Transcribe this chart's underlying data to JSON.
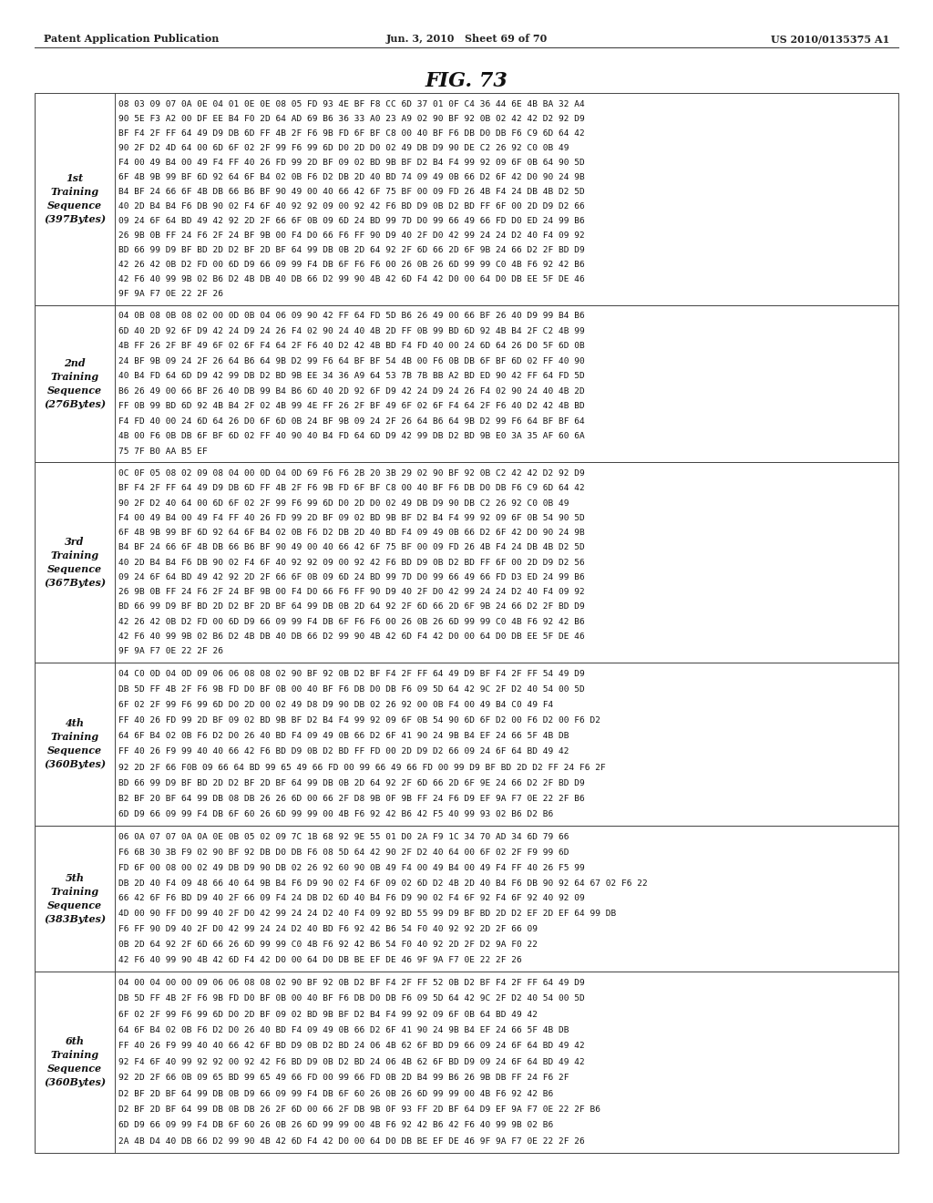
{
  "header_left": "Patent Application Publication",
  "header_center": "Jun. 3, 2010   Sheet 69 of 70",
  "header_right": "US 2010/0135375 A1",
  "figure_title": "FIG. 73",
  "sections": [
    {
      "label": "1st\nTraining\nSequence\n(397Bytes)",
      "rows": [
        "08 03 09 07 0A 0E 04 01 0E 0E 08 05 FD 93 4E BF F8 CC 6D 37 01 0F C4 36 44 6E 4B BA 32 A4",
        "90 5E F3 A2 00 DF EE B4 F0 2D 64 AD 69 B6 36 33 A0 23 A9 02 90 BF 92 0B 02 42 42 D2 92 D9",
        "BF F4 2F FF 64 49 D9 DB 6D FF 4B 2F F6 9B FD 6F BF C8 00 40 BF F6 DB D0 DB F6 C9 6D 64 42",
        "90 2F D2 4D 64 00 6D 6F 02 2F 99 F6 99 6D D0 2D D0 02 49 DB D9 90 DE C2 26 92 C0 0B 49",
        "F4 00 49 B4 00 49 F4 FF 40 26 FD 99 2D BF 09 02 BD 9B BF D2 B4 F4 99 92 09 6F 0B 64 90 5D",
        "6F 4B 9B 99 BF 6D 92 64 6F B4 02 0B F6 D2 DB 2D 40 BD 74 09 49 0B 66 D2 6F 42 D0 90 24 9B",
        "B4 BF 24 66 6F 4B DB 66 B6 BF 90 49 00 40 66 42 6F 75 BF 00 09 FD 26 4B F4 24 DB 4B D2 5D",
        "40 2D B4 B4 F6 DB 90 02 F4 6F 40 92 92 09 00 92 42 F6 BD D9 0B D2 BD FF 6F 00 2D D9 D2 66",
        "09 24 6F 64 BD 49 42 92 2D 2F 66 6F 0B 09 6D 24 BD 99 7D D0 99 66 49 66 FD D0 ED 24 99 B6",
        "26 9B 0B FF 24 F6 2F 24 BF 9B 00 F4 D0 66 F6 FF 90 D9 40 2F D0 42 99 24 24 D2 40 F4 09 92",
        "BD 66 99 D9 BF BD 2D D2 BF 2D BF 64 99 DB 0B 2D 64 92 2F 6D 66 2D 6F 9B 24 66 D2 2F BD D9",
        "42 26 42 0B D2 FD 00 6D D9 66 09 99 F4 DB 6F F6 F6 00 26 0B 26 6D 99 99 C0 4B F6 92 42 B6",
        "42 F6 40 99 9B 02 B6 D2 4B DB 40 DB 66 D2 99 90 4B 42 6D F4 42 D0 00 64 D0 DB EE 5F DE 46",
        "9F 9A F7 0E 22 2F 26"
      ]
    },
    {
      "label": "2nd\nTraining\nSequence\n(276Bytes)",
      "rows": [
        "04 0B 08 0B 08 02 00 0D 0B 04 06 09 90 42 FF 64 FD 5D B6 26 49 00 66 BF 26 40 D9 99 B4 B6",
        "6D 40 2D 92 6F D9 42 24 D9 24 26 F4 02 90 24 40 4B 2D FF 0B 99 BD 6D 92 4B B4 2F C2 4B 99",
        "4B FF 26 2F BF 49 6F 02 6F F4 64 2F F6 40 D2 42 4B BD F4 FD 40 00 24 6D 64 26 D0 5F 6D 0B",
        "24 BF 9B 09 24 2F 26 64 B6 64 9B D2 99 F6 64 BF BF 54 4B 00 F6 0B DB 6F BF 6D 02 FF 40 90",
        "40 B4 FD 64 6D D9 42 99 DB D2 BD 9B EE 34 36 A9 64 53 7B 7B BB A2 BD ED 90 42 FF 64 FD 5D",
        "B6 26 49 00 66 BF 26 40 DB 99 B4 B6 6D 40 2D 92 6F D9 42 24 D9 24 26 F4 02 90 24 40 4B 2D",
        "FF 0B 99 BD 6D 92 4B B4 2F 02 4B 99 4E FF 26 2F BF 49 6F 02 6F F4 64 2F F6 40 D2 42 4B BD",
        "F4 FD 40 00 24 6D 64 26 D0 6F 6D 0B 24 BF 9B 09 24 2F 26 64 B6 64 9B D2 99 F6 64 BF BF 64",
        "4B 00 F6 0B DB 6F BF 6D 02 FF 40 90 40 B4 FD 64 6D D9 42 99 DB D2 BD 9B E0 3A 35 AF 60 6A",
        "75 7F B0 AA B5 EF"
      ]
    },
    {
      "label": "3rd\nTraining\nSequence\n(367Bytes)",
      "rows": [
        "0C 0F 05 08 02 09 08 04 00 0D 04 0D 69 F6 F6 2B 20 3B 29 02 90 BF 92 0B C2 42 42 D2 92 D9",
        "BF F4 2F FF 64 49 D9 DB 6D FF 4B 2F F6 9B FD 6F BF C8 00 40 BF F6 DB D0 DB F6 C9 6D 64 42",
        "90 2F D2 40 64 00 6D 6F 02 2F 99 F6 99 6D D0 2D D0 02 49 DB D9 90 DB C2 26 92 C0 0B 49",
        "F4 00 49 B4 00 49 F4 FF 40 26 FD 99 2D BF 09 02 BD 9B BF D2 B4 F4 99 92 09 6F 0B 54 90 5D",
        "6F 4B 9B 99 BF 6D 92 64 6F B4 02 0B F6 D2 DB 2D 40 BD F4 09 49 0B 66 D2 6F 42 D0 90 24 9B",
        "B4 BF 24 66 6F 4B DB 66 B6 BF 90 49 00 40 66 42 6F 75 BF 00 09 FD 26 4B F4 24 DB 4B D2 5D",
        "40 2D B4 B4 F6 DB 90 02 F4 6F 40 92 92 09 00 92 42 F6 BD D9 0B D2 BD FF 6F 00 2D D9 D2 56",
        "09 24 6F 64 BD 49 42 92 2D 2F 66 6F 0B 09 6D 24 BD 99 7D D0 99 66 49 66 FD D3 ED 24 99 B6",
        "26 9B 0B FF 24 F6 2F 24 BF 9B 00 F4 D0 66 F6 FF 90 D9 40 2F D0 42 99 24 24 D2 40 F4 09 92",
        "BD 66 99 D9 BF BD 2D D2 BF 2D BF 64 99 DB 0B 2D 64 92 2F 6D 66 2D 6F 9B 24 66 D2 2F BD D9",
        "42 26 42 0B D2 FD 00 6D D9 66 09 99 F4 DB 6F F6 F6 00 26 0B 26 6D 99 99 C0 4B F6 92 42 B6",
        "42 F6 40 99 9B 02 B6 D2 4B DB 40 DB 66 D2 99 90 4B 42 6D F4 42 D0 00 64 D0 DB EE 5F DE 46",
        "9F 9A F7 0E 22 2F 26"
      ]
    },
    {
      "label": "4th\nTraining\nSequence\n(360Bytes)",
      "rows": [
        "04 C0 0D 04 0D 09 06 06 08 08 02 90 BF 92 0B D2 BF F4 2F FF 64 49 D9 BF F4 2F FF 54 49 D9",
        "DB 5D FF 4B 2F F6 9B FD D0 BF 0B 00 40 BF F6 DB D0 DB F6 09 5D 64 42 9C 2F D2 40 54 00 5D",
        "6F 02 2F 99 F6 99 6D D0 2D 00 02 49 D8 D9 90 DB 02 26 92 00 0B F4 00 49 B4 C0 49 F4",
        "FF 40 26 FD 99 2D BF 09 02 BD 9B BF D2 B4 F4 99 92 09 6F 0B 54 90 6D 6F D2 00 F6 D2 00 F6 D2",
        "64 6F B4 02 0B F6 D2 D0 26 40 BD F4 09 49 0B 66 D2 6F 41 90 24 9B B4 EF 24 66 5F 4B DB",
        "FF 40 26 F9 99 40 40 66 42 F6 BD D9 0B D2 BD FF FD 00 2D D9 D2 66 09 24 6F 64 BD 49 42",
        "92 2D 2F 66 F0B 09 66 64 BD 99 65 49 66 FD 00 99 66 49 66 FD 00 99 D9 BF BD 2D D2 FF 24 F6 2F",
        "BD 66 99 D9 BF BD 2D D2 BF 2D BF 64 99 DB 0B 2D 64 92 2F 6D 66 2D 6F 9E 24 66 D2 2F BD D9",
        "B2 BF 20 BF 64 99 DB 08 DB 26 26 6D 00 66 2F D8 9B 0F 9B FF 24 F6 D9 EF 9A F7 0E 22 2F B6",
        "6D D9 66 09 99 F4 DB 6F 60 26 6D 99 99 00 4B F6 92 42 B6 42 F5 40 99 93 02 B6 D2 B6"
      ]
    },
    {
      "label": "5th\nTraining\nSequence\n(383Bytes)",
      "rows": [
        "06 0A 07 07 0A 0A 0E 0B 05 02 09 7C 1B 68 92 9E 55 01 D0 2A F9 1C 34 70 AD 34 6D 79 66",
        "F6 6B 30 3B F9 02 90 BF 92 DB D0 DB F6 08 5D 64 42 90 2F D2 40 64 00 6F 02 2F F9 99 6D",
        "FD 6F 00 08 00 02 49 DB D9 90 DB 02 26 92 60 90 0B 49 F4 00 49 B4 00 49 F4 FF 40 26 F5 99",
        "DB 2D 40 F4 09 48 66 40 64 9B B4 F6 D9 90 02 F4 6F 09 02 6D D2 4B 2D 40 B4 F6 DB 90 92 64 67 02 F6 22",
        "66 42 6F F6 BD D9 40 2F 66 09 F4 24 DB D2 6D 40 B4 F6 D9 90 02 F4 6F 92 F4 6F 92 40 92 09",
        "4D 00 90 FF D0 99 40 2F D0 42 99 24 24 D2 40 F4 09 92 BD 55 99 D9 BF BD 2D D2 EF 2D EF 64 99 DB",
        "F6 FF 90 D9 40 2F D0 42 99 24 24 D2 40 BD F6 92 42 B6 54 F0 40 92 92 2D 2F 66 09",
        "0B 2D 64 92 2F 6D 66 26 6D 99 99 C0 4B F6 92 42 B6 54 F0 40 92 2D 2F D2 9A F0 22",
        "42 F6 40 99 90 4B 42 6D F4 42 D0 00 64 D0 DB BE EF DE 46 9F 9A F7 0E 22 2F 26"
      ]
    },
    {
      "label": "6th\nTraining\nSequence\n(360Bytes)",
      "rows": [
        "04 00 04 00 00 09 06 06 08 08 02 90 BF 92 0B D2 BF F4 2F FF 52 0B D2 BF F4 2F FF 64 49 D9",
        "DB 5D FF 4B 2F F6 9B FD D0 BF 0B 00 40 BF F6 DB D0 DB F6 09 5D 64 42 9C 2F D2 40 54 00 5D",
        "6F 02 2F 99 F6 99 6D D0 2D BF 09 02 BD 9B BF D2 B4 F4 99 92 09 6F 0B 64 BD 49 42",
        "64 6F B4 02 0B F6 D2 D0 26 40 BD F4 09 49 0B 66 D2 6F 41 90 24 9B B4 EF 24 66 5F 4B DB",
        "FF 40 26 F9 99 40 40 66 42 6F BD D9 0B D2 BD 24 06 4B 62 6F BD D9 66 09 24 6F 64 BD 49 42",
        "92 F4 6F 40 99 92 92 00 92 42 F6 BD D9 0B D2 BD 24 06 4B 62 6F BD D9 09 24 6F 64 BD 49 42",
        "92 2D 2F 66 0B 09 65 BD 99 65 49 66 FD 00 99 66 FD 0B 2D B4 99 B6 26 9B DB FF 24 F6 2F",
        "D2 BF 2D BF 64 99 DB 0B D9 66 09 99 F4 DB 6F 60 26 0B 26 6D 99 99 00 4B F6 92 42 B6",
        "D2 BF 2D BF 64 99 DB 0B DB 26 2F 6D 00 66 2F DB 9B 0F 93 FF 2D BF 64 D9 EF 9A F7 0E 22 2F B6",
        "6D D9 66 09 99 F4 DB 6F 60 26 0B 26 6D 99 99 00 4B F6 92 42 B6 42 F6 40 99 9B 02 B6",
        "2A 4B D4 40 DB 66 D2 99 90 4B 42 6D F4 42 D0 00 64 D0 DB BE EF DE 46 9F 9A F7 0E 22 2F 26"
      ]
    }
  ]
}
